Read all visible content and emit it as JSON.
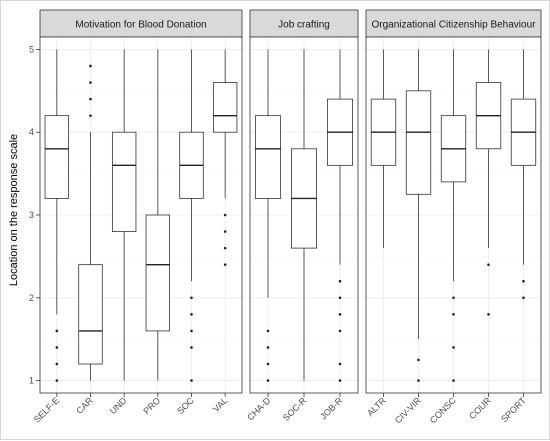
{
  "chart_data": {
    "type": "boxplot",
    "ylabel": "Location on the response scale",
    "ylim": [
      0.85,
      5.15
    ],
    "y_ticks": [
      1,
      2,
      3,
      4,
      5
    ],
    "grid": true,
    "panels": [
      {
        "title": "Motivation for Blood Donation",
        "boxes": [
          {
            "label": "SELF-E",
            "whisker_low": 1.8,
            "q1": 3.2,
            "median": 3.8,
            "q3": 4.2,
            "whisker_high": 5.0,
            "outliers": [
              1.0,
              1.2,
              1.4,
              1.6
            ]
          },
          {
            "label": "CAR",
            "whisker_low": 1.0,
            "q1": 1.2,
            "median": 1.6,
            "q3": 2.4,
            "whisker_high": 4.0,
            "outliers": [
              4.2,
              4.4,
              4.6,
              4.8
            ]
          },
          {
            "label": "UND",
            "whisker_low": 1.0,
            "q1": 2.8,
            "median": 3.6,
            "q3": 4.0,
            "whisker_high": 5.0,
            "outliers": []
          },
          {
            "label": "PRO",
            "whisker_low": 1.0,
            "q1": 1.6,
            "median": 2.4,
            "q3": 3.0,
            "whisker_high": 5.0,
            "outliers": []
          },
          {
            "label": "SOC",
            "whisker_low": 2.2,
            "q1": 3.2,
            "median": 3.6,
            "q3": 4.0,
            "whisker_high": 5.0,
            "outliers": [
              1.0,
              1.4,
              1.6,
              1.8,
              2.0
            ]
          },
          {
            "label": "VAL",
            "whisker_low": 3.2,
            "q1": 4.0,
            "median": 4.2,
            "q3": 4.6,
            "whisker_high": 5.0,
            "outliers": [
              2.4,
              2.6,
              2.8,
              3.0
            ]
          }
        ]
      },
      {
        "title": "Job crafting",
        "boxes": [
          {
            "label": "CHA-D",
            "whisker_low": 2.0,
            "q1": 3.2,
            "median": 3.8,
            "q3": 4.2,
            "whisker_high": 5.0,
            "outliers": [
              1.0,
              1.2,
              1.4,
              1.6
            ]
          },
          {
            "label": "SOC-R",
            "whisker_low": 1.0,
            "q1": 2.6,
            "median": 3.2,
            "q3": 3.8,
            "whisker_high": 5.0,
            "outliers": []
          },
          {
            "label": "JOB-R",
            "whisker_low": 2.4,
            "q1": 3.6,
            "median": 4.0,
            "q3": 4.4,
            "whisker_high": 5.0,
            "outliers": [
              1.0,
              1.2,
              1.6,
              1.8,
              2.0,
              2.2
            ]
          }
        ]
      },
      {
        "title": "Organizational Citizenship Behaviour",
        "boxes": [
          {
            "label": "ALTR",
            "whisker_low": 2.6,
            "q1": 3.6,
            "median": 4.0,
            "q3": 4.4,
            "whisker_high": 5.0,
            "outliers": []
          },
          {
            "label": "CIV-VIR",
            "whisker_low": 1.5,
            "q1": 3.25,
            "median": 4.0,
            "q3": 4.5,
            "whisker_high": 5.0,
            "outliers": [
              1.0,
              1.25
            ]
          },
          {
            "label": "CONSC",
            "whisker_low": 2.2,
            "q1": 3.4,
            "median": 3.8,
            "q3": 4.2,
            "whisker_high": 5.0,
            "outliers": [
              1.0,
              1.4,
              1.8,
              2.0
            ]
          },
          {
            "label": "COUR",
            "whisker_low": 2.6,
            "q1": 3.8,
            "median": 4.2,
            "q3": 4.6,
            "whisker_high": 5.0,
            "outliers": [
              1.8,
              2.4
            ]
          },
          {
            "label": "SPORT",
            "whisker_low": 2.4,
            "q1": 3.6,
            "median": 4.0,
            "q3": 4.4,
            "whisker_high": 5.0,
            "outliers": [
              2.0,
              2.2
            ]
          }
        ]
      }
    ]
  }
}
